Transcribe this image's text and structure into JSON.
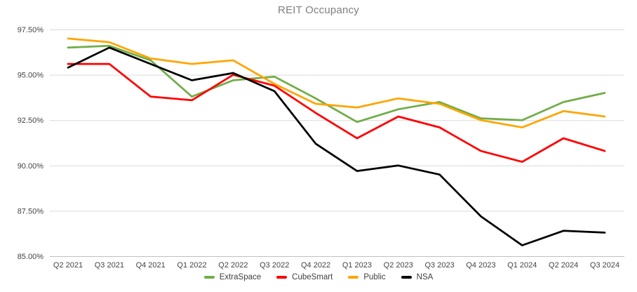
{
  "chart_data": {
    "type": "line",
    "title": "REIT Occupancy",
    "xlabel": "",
    "ylabel": "",
    "categories": [
      "Q2 2021",
      "Q3 2021",
      "Q4 2021",
      "Q1 2022",
      "Q2 2022",
      "Q3 2022",
      "Q4 2022",
      "Q1 2023",
      "Q2 2023",
      "Q3 2023",
      "Q4 2023",
      "Q1 2024",
      "Q2 2024",
      "Q3 2024"
    ],
    "series": [
      {
        "name": "ExtraSpace",
        "color": "#70AD47",
        "values": [
          96.5,
          96.6,
          95.8,
          93.8,
          94.7,
          94.9,
          93.7,
          92.4,
          93.1,
          93.5,
          92.6,
          92.5,
          93.5,
          94.0
        ]
      },
      {
        "name": "CubeSmart",
        "color": "#FF0000",
        "values": [
          95.6,
          95.6,
          93.8,
          93.6,
          95.0,
          94.4,
          92.9,
          91.5,
          92.7,
          92.1,
          90.8,
          90.2,
          91.5,
          90.8
        ]
      },
      {
        "name": "Public",
        "color": "#FFA500",
        "values": [
          97.0,
          96.8,
          95.9,
          95.6,
          95.8,
          94.5,
          93.4,
          93.2,
          93.7,
          93.4,
          92.5,
          92.1,
          93.0,
          92.7
        ]
      },
      {
        "name": "NSA",
        "color": "#000000",
        "values": [
          95.4,
          96.5,
          95.6,
          94.7,
          95.1,
          94.1,
          91.2,
          89.7,
          90.0,
          89.5,
          87.2,
          85.6,
          86.4,
          86.3
        ]
      }
    ],
    "y_ticks": [
      {
        "value": 97.5,
        "label": "97.50%"
      },
      {
        "value": 95.0,
        "label": "95.00%"
      },
      {
        "value": 92.5,
        "label": "92.50%"
      },
      {
        "value": 90.0,
        "label": "90.00%"
      },
      {
        "value": 87.5,
        "label": "87.50%"
      },
      {
        "value": 85.0,
        "label": "85.00%"
      }
    ],
    "ylim": [
      85.0,
      97.5
    ],
    "grid": true,
    "legend_position": "bottom"
  },
  "style_colors": {
    "gridline": "#d9d9d9",
    "axis_line": "#bfbfbf",
    "title_text": "#7f7f7f",
    "tick_text": "#444444"
  }
}
